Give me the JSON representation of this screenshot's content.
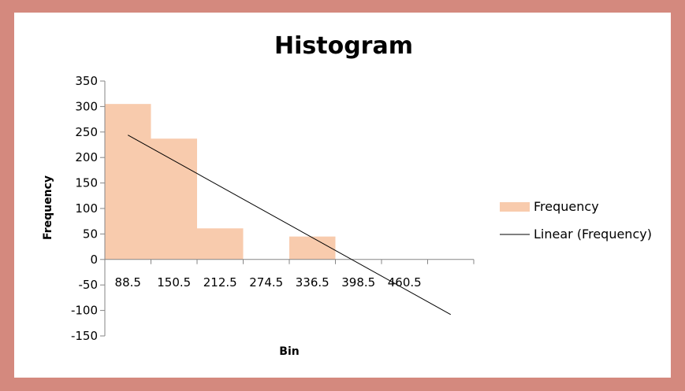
{
  "chart_data": {
    "type": "bar",
    "title": "Histogram",
    "xlabel": "Bin",
    "ylabel": "Frequency",
    "categories": [
      "88.5",
      "150.5",
      "212.5",
      "274.5",
      "336.5",
      "398.5",
      "460.5",
      ""
    ],
    "series": [
      {
        "name": "Frequency",
        "type": "bar",
        "color": "#f8cbad",
        "values": [
          305,
          237,
          61,
          0,
          45,
          0,
          0,
          0
        ]
      },
      {
        "name": "Linear (Frequency)",
        "type": "line",
        "color": "#000000",
        "start": {
          "category_index": 0,
          "value": 244
        },
        "end": {
          "category_index": 7,
          "value": -108
        }
      }
    ],
    "ylim": [
      -150,
      350
    ],
    "yticks": [
      -150,
      -100,
      -50,
      0,
      50,
      100,
      150,
      200,
      250,
      300,
      350
    ],
    "grid": false,
    "legend_position": "right"
  }
}
